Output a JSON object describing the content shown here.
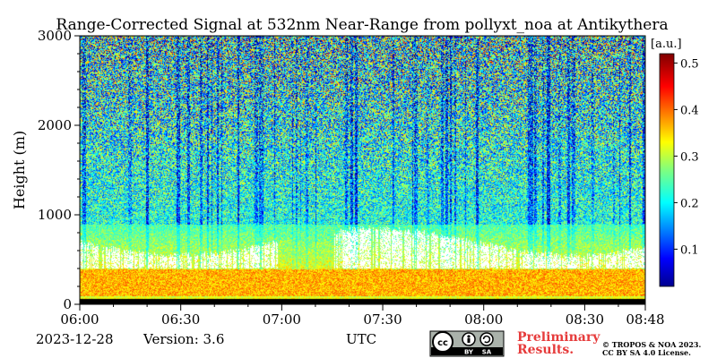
{
  "chart_data": {
    "type": "heatmap",
    "title": "Range-Corrected Signal at 532nm Near-Range from pollyxt_noa at Antikythera",
    "ylabel": "Height (m)",
    "xlabel": "UTC",
    "x_ticks": [
      "06:00",
      "06:30",
      "07:00",
      "07:30",
      "08:00",
      "08:30",
      "08:48"
    ],
    "x_range": [
      "06:00",
      "08:48"
    ],
    "y_ticks": [
      "0",
      "1000",
      "2000",
      "3000"
    ],
    "ylim": [
      0,
      3000
    ],
    "colorbar": {
      "label": "[a.u.]",
      "ticks": [
        "0.1",
        "0.2",
        "0.3",
        "0.4",
        "0.5"
      ],
      "range": [
        0.02,
        0.52
      ]
    },
    "features": {
      "saturated_cloud_layer_height_m": [
        400,
        700
      ],
      "high_signal_band_height_m": [
        100,
        400
      ],
      "aerosol_layer_top_m": 900,
      "obstructed_lowest_height_m": 0
    }
  },
  "footer": {
    "date": "2023-12-28",
    "version": "Version: 3.6",
    "xlabel": "UTC",
    "preliminary_line1": "Preliminary",
    "preliminary_line2": "Results.",
    "copyright_line1": "© TROPOS & NOA 2023.",
    "copyright_line2": "CC BY SA 4.0 License.",
    "license_badge": "cc-by-sa-icon",
    "license_by": "BY",
    "license_sa": "SA"
  },
  "colors": {
    "colormap": "jet",
    "cloud_saturation": "#ffffff",
    "ground_gap": "#000000",
    "preliminary": "#e63b3b"
  }
}
